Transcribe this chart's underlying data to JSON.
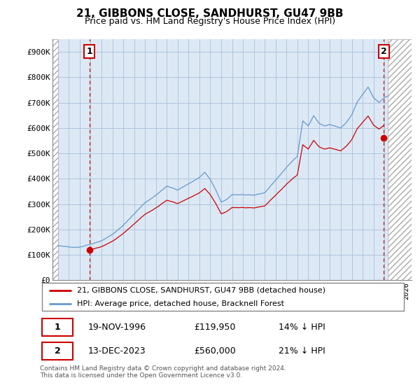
{
  "title": "21, GIBBONS CLOSE, SANDHURST, GU47 9BB",
  "subtitle": "Price paid vs. HM Land Registry's House Price Index (HPI)",
  "ylabel_ticks": [
    "£0",
    "£100K",
    "£200K",
    "£300K",
    "£400K",
    "£500K",
    "£600K",
    "£700K",
    "£800K",
    "£900K"
  ],
  "ytick_values": [
    0,
    100000,
    200000,
    300000,
    400000,
    500000,
    600000,
    700000,
    800000,
    900000
  ],
  "ylim": [
    0,
    950000
  ],
  "xlim_start": 1993.5,
  "xlim_end": 2026.5,
  "sale1_x": 1996.88,
  "sale1_y": 119950,
  "sale2_x": 2023.95,
  "sale2_y": 560000,
  "line_color_property": "#cc0000",
  "line_color_hpi": "#6699cc",
  "dot_color": "#cc0000",
  "dashed_line_color": "#cc0000",
  "chart_bg_color": "#dce9f5",
  "hatch_color": "#bbbbbb",
  "grid_color": "#b0c4de",
  "legend_label1": "21, GIBBONS CLOSE, SANDHURST, GU47 9BB (detached house)",
  "legend_label2": "HPI: Average price, detached house, Bracknell Forest",
  "annotation1_date": "19-NOV-1996",
  "annotation1_price": "£119,950",
  "annotation1_hpi": "14% ↓ HPI",
  "annotation2_date": "13-DEC-2023",
  "annotation2_price": "£560,000",
  "annotation2_hpi": "21% ↓ HPI",
  "footer": "Contains HM Land Registry data © Crown copyright and database right 2024.\nThis data is licensed under the Open Government Licence v3.0."
}
